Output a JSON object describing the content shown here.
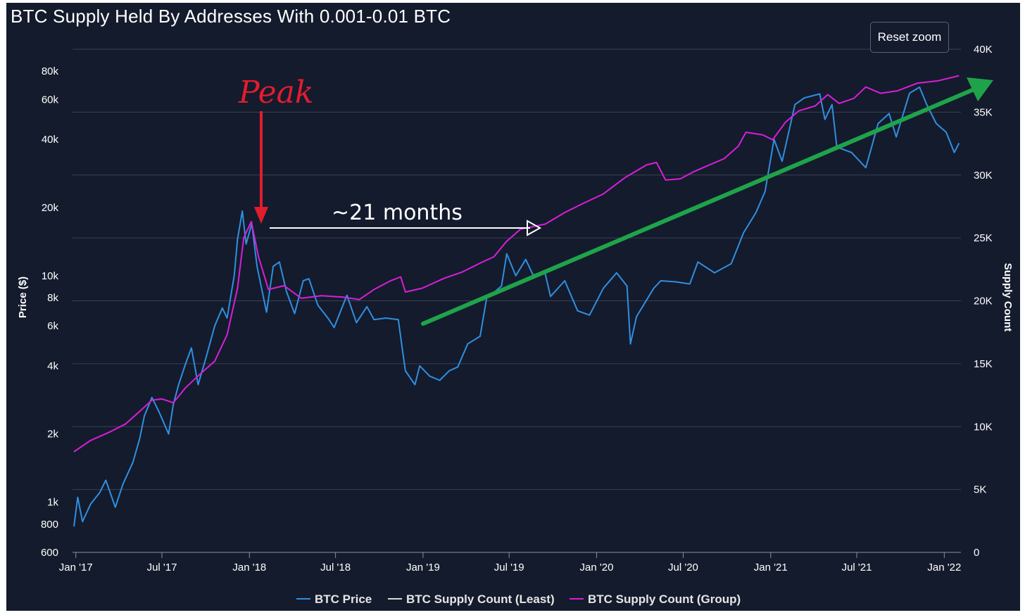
{
  "title": "BTC Supply Held By Addresses With 0.001-0.01 BTC",
  "reset_zoom_label": "Reset zoom",
  "colors": {
    "background": "#141b2d",
    "grid": "#3a4152",
    "price": "#2f8fe0",
    "least": "#d9d9d9",
    "group": "#d81fd8",
    "peak_arrow": "#e11d2e",
    "trend_arrow": "#1fa34a",
    "months_arrow": "#ffffff"
  },
  "annotations": {
    "peak_label": "Peak",
    "months_label": "~21 months"
  },
  "chart_data": {
    "type": "line",
    "title": "BTC Supply Held By Addresses With 0.001-0.01 BTC",
    "x_axis": {
      "type": "date",
      "range": [
        "2016-12-25",
        "2022-02-05"
      ],
      "tick_labels": [
        "Jan '17",
        "Jul '17",
        "Jan '18",
        "Jul '18",
        "Jan '19",
        "Jul '19",
        "Jan '20",
        "Jul '20",
        "Jan '21",
        "Jul '21",
        "Jan '22"
      ],
      "tick_dates": [
        "2017-01-01",
        "2017-07-01",
        "2018-01-01",
        "2018-07-01",
        "2019-01-01",
        "2019-07-01",
        "2020-01-01",
        "2020-07-01",
        "2021-01-01",
        "2021-07-01",
        "2022-01-01"
      ]
    },
    "y_axis_left": {
      "label": "Price ($)",
      "scale": "log",
      "range": [
        600,
        100000
      ],
      "tick_values": [
        600,
        800,
        1000,
        2000,
        4000,
        6000,
        8000,
        10000,
        20000,
        40000,
        60000,
        80000
      ],
      "tick_labels": [
        "600",
        "800",
        "1k",
        "2k",
        "4k",
        "6k",
        "8k",
        "10k",
        "20k",
        "40k",
        "60k",
        "80k"
      ]
    },
    "y_axis_right": {
      "label": "Supply Count",
      "scale": "linear",
      "range": [
        0,
        40000
      ],
      "tick_values": [
        0,
        5000,
        10000,
        15000,
        20000,
        25000,
        30000,
        35000,
        40000
      ],
      "tick_labels": [
        "0",
        "5K",
        "10K",
        "15K",
        "20K",
        "25K",
        "30K",
        "35K",
        "40K"
      ]
    },
    "grid": true,
    "legend_position": "bottom-center",
    "legend": [
      "BTC Price",
      "BTC Supply Count (Least)",
      "BTC Supply Count (Group)"
    ],
    "series": [
      {
        "name": "BTC Price",
        "axis": "left",
        "points": [
          [
            "2016-12-28",
            780
          ],
          [
            "2017-01-05",
            1050
          ],
          [
            "2017-01-15",
            820
          ],
          [
            "2017-02-01",
            980
          ],
          [
            "2017-02-20",
            1100
          ],
          [
            "2017-03-05",
            1250
          ],
          [
            "2017-03-25",
            950
          ],
          [
            "2017-04-10",
            1200
          ],
          [
            "2017-05-01",
            1500
          ],
          [
            "2017-05-15",
            1900
          ],
          [
            "2017-05-25",
            2400
          ],
          [
            "2017-06-10",
            2900
          ],
          [
            "2017-06-25",
            2500
          ],
          [
            "2017-07-15",
            2000
          ],
          [
            "2017-07-25",
            2700
          ],
          [
            "2017-08-05",
            3300
          ],
          [
            "2017-08-20",
            4100
          ],
          [
            "2017-09-01",
            4800
          ],
          [
            "2017-09-15",
            3300
          ],
          [
            "2017-10-01",
            4300
          ],
          [
            "2017-10-20",
            6000
          ],
          [
            "2017-11-05",
            7200
          ],
          [
            "2017-11-15",
            6500
          ],
          [
            "2017-11-30",
            10000
          ],
          [
            "2017-12-07",
            14500
          ],
          [
            "2017-12-17",
            19300
          ],
          [
            "2017-12-25",
            13800
          ],
          [
            "2018-01-06",
            17000
          ],
          [
            "2018-01-17",
            11000
          ],
          [
            "2018-02-06",
            6900
          ],
          [
            "2018-02-20",
            11000
          ],
          [
            "2018-03-05",
            11500
          ],
          [
            "2018-03-20",
            8500
          ],
          [
            "2018-04-06",
            6800
          ],
          [
            "2018-04-24",
            9500
          ],
          [
            "2018-05-06",
            9700
          ],
          [
            "2018-05-25",
            7400
          ],
          [
            "2018-06-15",
            6500
          ],
          [
            "2018-06-28",
            5900
          ],
          [
            "2018-07-25",
            8200
          ],
          [
            "2018-08-14",
            6200
          ],
          [
            "2018-09-05",
            7300
          ],
          [
            "2018-09-20",
            6400
          ],
          [
            "2018-10-15",
            6500
          ],
          [
            "2018-11-10",
            6400
          ],
          [
            "2018-11-20",
            4500
          ],
          [
            "2018-11-25",
            3800
          ],
          [
            "2018-12-15",
            3300
          ],
          [
            "2018-12-25",
            4000
          ],
          [
            "2019-01-15",
            3600
          ],
          [
            "2019-02-05",
            3450
          ],
          [
            "2019-02-25",
            3800
          ],
          [
            "2019-03-15",
            3950
          ],
          [
            "2019-04-05",
            5000
          ],
          [
            "2019-05-01",
            5400
          ],
          [
            "2019-05-15",
            8000
          ],
          [
            "2019-06-01",
            8500
          ],
          [
            "2019-06-15",
            9000
          ],
          [
            "2019-06-26",
            12500
          ],
          [
            "2019-07-15",
            10000
          ],
          [
            "2019-08-05",
            11800
          ],
          [
            "2019-08-20",
            10100
          ],
          [
            "2019-09-15",
            10200
          ],
          [
            "2019-09-26",
            8100
          ],
          [
            "2019-10-26",
            9500
          ],
          [
            "2019-11-22",
            7000
          ],
          [
            "2019-12-17",
            6700
          ],
          [
            "2020-01-15",
            8800
          ],
          [
            "2020-02-12",
            10300
          ],
          [
            "2020-03-05",
            9000
          ],
          [
            "2020-03-12",
            5000
          ],
          [
            "2020-03-25",
            6600
          ],
          [
            "2020-04-30",
            8800
          ],
          [
            "2020-05-15",
            9500
          ],
          [
            "2020-06-15",
            9400
          ],
          [
            "2020-07-15",
            9200
          ],
          [
            "2020-08-01",
            11500
          ],
          [
            "2020-09-05",
            10300
          ],
          [
            "2020-10-10",
            11300
          ],
          [
            "2020-11-05",
            15500
          ],
          [
            "2020-12-01",
            19000
          ],
          [
            "2020-12-20",
            23500
          ],
          [
            "2021-01-08",
            40000
          ],
          [
            "2021-01-25",
            32000
          ],
          [
            "2021-02-10",
            45000
          ],
          [
            "2021-02-21",
            57000
          ],
          [
            "2021-03-13",
            61000
          ],
          [
            "2021-04-14",
            63500
          ],
          [
            "2021-04-25",
            49000
          ],
          [
            "2021-05-10",
            57000
          ],
          [
            "2021-05-20",
            37000
          ],
          [
            "2021-06-20",
            35000
          ],
          [
            "2021-07-20",
            30000
          ],
          [
            "2021-08-15",
            47000
          ],
          [
            "2021-09-07",
            52000
          ],
          [
            "2021-09-22",
            41000
          ],
          [
            "2021-10-20",
            64000
          ],
          [
            "2021-11-10",
            68000
          ],
          [
            "2021-11-25",
            57000
          ],
          [
            "2021-12-15",
            47000
          ],
          [
            "2022-01-05",
            43000
          ],
          [
            "2022-01-22",
            35000
          ],
          [
            "2022-02-01",
            38500
          ]
        ]
      },
      {
        "name": "BTC Supply Count (Least)",
        "axis": "right",
        "points": []
      },
      {
        "name": "BTC Supply Count (Group)",
        "axis": "right",
        "points": [
          [
            "2016-12-28",
            8000
          ],
          [
            "2017-02-01",
            8900
          ],
          [
            "2017-03-15",
            9600
          ],
          [
            "2017-04-15",
            10200
          ],
          [
            "2017-05-15",
            11200
          ],
          [
            "2017-06-10",
            12100
          ],
          [
            "2017-07-01",
            12200
          ],
          [
            "2017-07-25",
            11900
          ],
          [
            "2017-08-20",
            13100
          ],
          [
            "2017-09-20",
            14200
          ],
          [
            "2017-10-20",
            15200
          ],
          [
            "2017-11-15",
            17300
          ],
          [
            "2017-12-07",
            21000
          ],
          [
            "2017-12-20",
            25000
          ],
          [
            "2018-01-05",
            26300
          ],
          [
            "2018-01-20",
            23500
          ],
          [
            "2018-02-10",
            20900
          ],
          [
            "2018-03-15",
            21200
          ],
          [
            "2018-04-20",
            20200
          ],
          [
            "2018-06-01",
            20400
          ],
          [
            "2018-07-15",
            20300
          ],
          [
            "2018-08-20",
            20100
          ],
          [
            "2018-09-20",
            20900
          ],
          [
            "2018-10-25",
            21600
          ],
          [
            "2018-11-15",
            21900
          ],
          [
            "2018-11-25",
            20700
          ],
          [
            "2018-12-30",
            21000
          ],
          [
            "2019-02-15",
            21800
          ],
          [
            "2019-03-25",
            22300
          ],
          [
            "2019-05-01",
            23000
          ],
          [
            "2019-05-30",
            23500
          ],
          [
            "2019-06-25",
            24700
          ],
          [
            "2019-07-25",
            25700
          ],
          [
            "2019-09-15",
            26100
          ],
          [
            "2019-10-25",
            27000
          ],
          [
            "2019-12-01",
            27700
          ],
          [
            "2020-01-15",
            28500
          ],
          [
            "2020-03-01",
            29800
          ],
          [
            "2020-04-15",
            30800
          ],
          [
            "2020-05-06",
            31000
          ],
          [
            "2020-05-25",
            29600
          ],
          [
            "2020-06-25",
            29700
          ],
          [
            "2020-07-25",
            30300
          ],
          [
            "2020-08-25",
            30800
          ],
          [
            "2020-09-25",
            31300
          ],
          [
            "2020-10-25",
            32300
          ],
          [
            "2020-11-10",
            33400
          ],
          [
            "2020-12-15",
            33200
          ],
          [
            "2021-01-05",
            32800
          ],
          [
            "2021-02-01",
            34200
          ],
          [
            "2021-03-01",
            35100
          ],
          [
            "2021-04-05",
            35500
          ],
          [
            "2021-05-01",
            36400
          ],
          [
            "2021-05-25",
            35700
          ],
          [
            "2021-06-25",
            36100
          ],
          [
            "2021-07-20",
            37000
          ],
          [
            "2021-08-20",
            36500
          ],
          [
            "2021-09-25",
            36700
          ],
          [
            "2021-11-05",
            37300
          ],
          [
            "2021-12-20",
            37500
          ],
          [
            "2022-02-01",
            37900
          ]
        ]
      }
    ]
  }
}
